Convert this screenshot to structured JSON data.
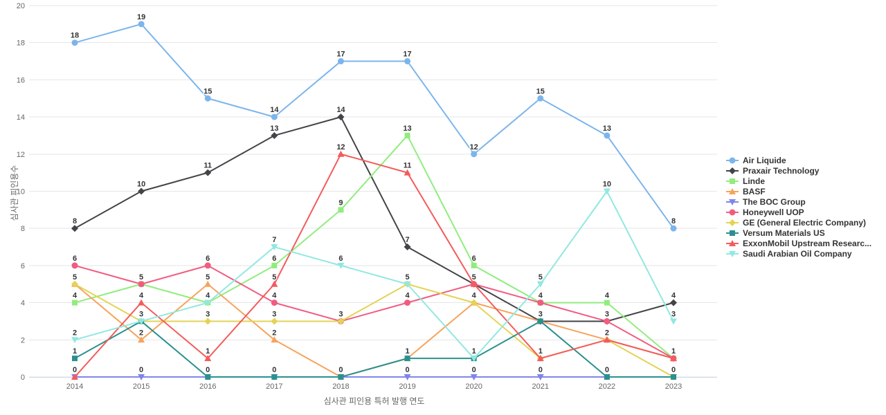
{
  "chart_data": {
    "type": "line",
    "title": "",
    "xlabel": "심사관 피인용 특허 발행 연도",
    "ylabel": "심사관 피인용수",
    "categories": [
      "2014",
      "2015",
      "2016",
      "2017",
      "2018",
      "2019",
      "2020",
      "2021",
      "2022",
      "2023"
    ],
    "ylim": [
      0,
      20
    ],
    "ytick_step": 2,
    "grid": true,
    "legend_position": "right",
    "data_labels": true,
    "series": [
      {
        "name": "Air Liquide",
        "color": "#7cb5ec",
        "marker": "circle",
        "values": [
          18,
          19,
          15,
          14,
          17,
          17,
          12,
          15,
          13,
          8
        ]
      },
      {
        "name": "Praxair Technology",
        "color": "#434348",
        "marker": "diamond",
        "values": [
          8,
          10,
          11,
          13,
          14,
          7,
          5,
          3,
          3,
          4
        ]
      },
      {
        "name": "Linde",
        "color": "#90ed7d",
        "marker": "square",
        "values": [
          4,
          5,
          4,
          6,
          9,
          13,
          6,
          4,
          4,
          1
        ]
      },
      {
        "name": "BASF",
        "color": "#f7a35c",
        "marker": "triangle",
        "values": [
          5,
          2,
          5,
          2,
          0,
          1,
          4,
          3,
          2,
          1
        ]
      },
      {
        "name": "The BOC Group",
        "color": "#8085e9",
        "marker": "triangle-down",
        "values": [
          0,
          0,
          0,
          0,
          0,
          0,
          0,
          0,
          0,
          0
        ]
      },
      {
        "name": "Honeywell UOP",
        "color": "#f15c80",
        "marker": "circle",
        "values": [
          6,
          5,
          6,
          4,
          3,
          4,
          5,
          4,
          3,
          1
        ]
      },
      {
        "name": "GE (General Electric Company)",
        "color": "#e4d354",
        "marker": "diamond",
        "values": [
          5,
          3,
          3,
          3,
          3,
          5,
          4,
          1,
          2,
          0
        ]
      },
      {
        "name": "Versum Materials US",
        "color": "#2b908f",
        "marker": "square",
        "values": [
          1,
          3,
          0,
          0,
          0,
          1,
          1,
          3,
          0,
          0
        ]
      },
      {
        "name": "ExxonMobil Upstream Researc...",
        "color": "#f45b5b",
        "marker": "triangle",
        "values": [
          0,
          4,
          1,
          5,
          12,
          11,
          5,
          1,
          2,
          1
        ]
      },
      {
        "name": "Saudi Arabian Oil Company",
        "color": "#91e8e1",
        "marker": "triangle-down",
        "values": [
          2,
          3,
          4,
          7,
          6,
          5,
          1,
          5,
          10,
          3
        ]
      }
    ],
    "axis_colors": {
      "grid": "#e6e6e6",
      "axis_line": "#ccd6eb",
      "tick_label": "#666666",
      "data_label": "#333333"
    }
  }
}
